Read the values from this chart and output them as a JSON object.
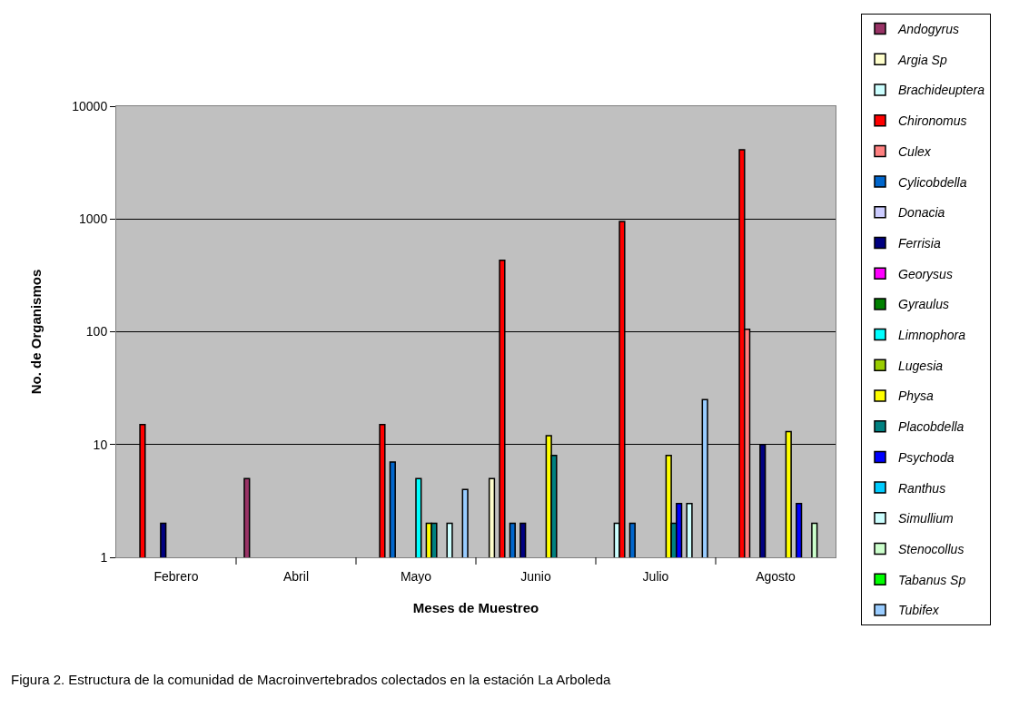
{
  "chart_data": {
    "type": "bar",
    "xlabel": "Meses de Muestreo",
    "ylabel": "No. de Organismos",
    "categories": [
      "Febrero",
      "Abril",
      "Mayo",
      "Junio",
      "Julio",
      "Agosto"
    ],
    "series": [
      {
        "name": "Andogyrus",
        "color": "#993366",
        "values": [
          null,
          5,
          null,
          null,
          null,
          null
        ]
      },
      {
        "name": "Argia Sp",
        "color": "#ffffcc",
        "values": [
          null,
          null,
          null,
          5,
          null,
          null
        ]
      },
      {
        "name": "Brachideuptera",
        "color": "#ccffff",
        "values": [
          null,
          null,
          null,
          null,
          2,
          null
        ]
      },
      {
        "name": "Chironomus",
        "color": "#ff0000",
        "values": [
          15,
          null,
          15,
          430,
          950,
          4100
        ]
      },
      {
        "name": "Culex",
        "color": "#ff8080",
        "values": [
          null,
          null,
          null,
          null,
          null,
          105
        ]
      },
      {
        "name": "Cylicobdella",
        "color": "#0066cc",
        "values": [
          null,
          null,
          7,
          2,
          2,
          null
        ]
      },
      {
        "name": "Donacia",
        "color": "#ccccff",
        "values": [
          null,
          null,
          null,
          null,
          null,
          null
        ]
      },
      {
        "name": "Ferrisia",
        "color": "#000080",
        "values": [
          2,
          null,
          null,
          2,
          null,
          10
        ]
      },
      {
        "name": "Georysus",
        "color": "#ff00ff",
        "values": [
          null,
          null,
          null,
          null,
          null,
          null
        ]
      },
      {
        "name": "Gyraulus",
        "color": "#008000",
        "values": [
          null,
          null,
          null,
          null,
          null,
          null
        ]
      },
      {
        "name": "Limnophora",
        "color": "#00ffff",
        "values": [
          null,
          null,
          5,
          null,
          null,
          null
        ]
      },
      {
        "name": "Lugesia",
        "color": "#99cc00",
        "values": [
          null,
          null,
          null,
          null,
          null,
          null
        ]
      },
      {
        "name": "Physa",
        "color": "#ffff00",
        "values": [
          null,
          null,
          2,
          12,
          8,
          13
        ]
      },
      {
        "name": "Placobdella",
        "color": "#008080",
        "values": [
          null,
          null,
          2,
          8,
          2,
          null
        ]
      },
      {
        "name": "Psychoda",
        "color": "#0000ff",
        "values": [
          null,
          null,
          null,
          null,
          3,
          3
        ]
      },
      {
        "name": "Ranthus",
        "color": "#00ccff",
        "values": [
          null,
          null,
          null,
          null,
          null,
          null
        ]
      },
      {
        "name": "Simullium",
        "color": "#ccffff",
        "values": [
          null,
          null,
          2,
          null,
          3,
          null
        ]
      },
      {
        "name": "Stenocollus",
        "color": "#ccffcc",
        "values": [
          null,
          null,
          null,
          null,
          null,
          2
        ]
      },
      {
        "name": "Tabanus Sp",
        "color": "#00ff00",
        "values": [
          null,
          null,
          null,
          null,
          null,
          null
        ]
      },
      {
        "name": "Tubifex",
        "color": "#99ccff",
        "values": [
          null,
          null,
          4,
          null,
          25,
          null
        ]
      }
    ],
    "log": true,
    "ylim": [
      1,
      10000
    ],
    "yticks": [
      1,
      10,
      100,
      1000,
      10000
    ],
    "grid": "y",
    "legend": "right",
    "annotations": [
      "Figura 2. Estructura de la comunidad de Macroinvertebrados colectados en la estación La Arboleda"
    ]
  }
}
